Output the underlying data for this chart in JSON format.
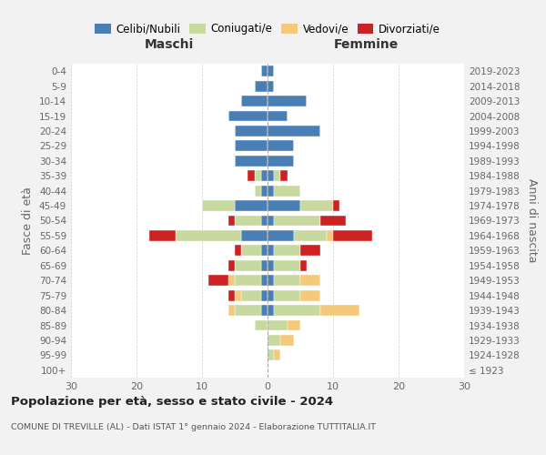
{
  "age_groups": [
    "100+",
    "95-99",
    "90-94",
    "85-89",
    "80-84",
    "75-79",
    "70-74",
    "65-69",
    "60-64",
    "55-59",
    "50-54",
    "45-49",
    "40-44",
    "35-39",
    "30-34",
    "25-29",
    "20-24",
    "15-19",
    "10-14",
    "5-9",
    "0-4"
  ],
  "birth_years": [
    "≤ 1923",
    "1924-1928",
    "1929-1933",
    "1934-1938",
    "1939-1943",
    "1944-1948",
    "1949-1953",
    "1954-1958",
    "1959-1963",
    "1964-1968",
    "1969-1973",
    "1974-1978",
    "1979-1983",
    "1984-1988",
    "1989-1993",
    "1994-1998",
    "1999-2003",
    "2004-2008",
    "2009-2013",
    "2014-2018",
    "2019-2023"
  ],
  "colors": {
    "celibi": "#4a7fb5",
    "coniugati": "#c8d9a0",
    "vedovi": "#f5c97a",
    "divorziati": "#cc2222"
  },
  "maschi": {
    "celibi": [
      0,
      0,
      0,
      0,
      1,
      1,
      1,
      1,
      1,
      4,
      1,
      5,
      1,
      1,
      5,
      5,
      5,
      6,
      4,
      2,
      1
    ],
    "coniugati": [
      0,
      0,
      0,
      2,
      4,
      3,
      4,
      4,
      3,
      10,
      4,
      5,
      1,
      1,
      0,
      0,
      0,
      0,
      0,
      0,
      0
    ],
    "vedovi": [
      0,
      0,
      0,
      0,
      1,
      1,
      1,
      0,
      0,
      0,
      0,
      0,
      0,
      0,
      0,
      0,
      0,
      0,
      0,
      0,
      0
    ],
    "divorziati": [
      0,
      0,
      0,
      0,
      0,
      1,
      3,
      1,
      1,
      4,
      1,
      0,
      0,
      1,
      0,
      0,
      0,
      0,
      0,
      0,
      0
    ]
  },
  "femmine": {
    "celibi": [
      0,
      0,
      0,
      0,
      1,
      1,
      1,
      1,
      1,
      4,
      1,
      5,
      1,
      1,
      4,
      4,
      8,
      3,
      6,
      1,
      1
    ],
    "coniugati": [
      0,
      1,
      2,
      3,
      7,
      4,
      4,
      4,
      4,
      5,
      7,
      5,
      4,
      1,
      0,
      0,
      0,
      0,
      0,
      0,
      0
    ],
    "vedovi": [
      0,
      1,
      2,
      2,
      6,
      3,
      3,
      0,
      0,
      1,
      0,
      0,
      0,
      0,
      0,
      0,
      0,
      0,
      0,
      0,
      0
    ],
    "divorziati": [
      0,
      0,
      0,
      0,
      0,
      0,
      0,
      1,
      3,
      6,
      4,
      1,
      0,
      1,
      0,
      0,
      0,
      0,
      0,
      0,
      0
    ]
  },
  "title": "Popolazione per età, sesso e stato civile - 2024",
  "subtitle": "COMUNE DI TREVILLE (AL) - Dati ISTAT 1° gennaio 2024 - Elaborazione TUTTITALIA.IT",
  "xlim": 30,
  "xlabel_maschi": "Maschi",
  "xlabel_femmine": "Femmine",
  "ylabel": "Fasce di età",
  "ylabel2": "Anni di nascita",
  "legend_labels": [
    "Celibi/Nubili",
    "Coniugati/e",
    "Vedovi/e",
    "Divorziati/e"
  ],
  "bg_color": "#f2f2f2",
  "plot_bg": "#ffffff",
  "xticks": [
    -30,
    -20,
    -10,
    0,
    10,
    20,
    30
  ]
}
